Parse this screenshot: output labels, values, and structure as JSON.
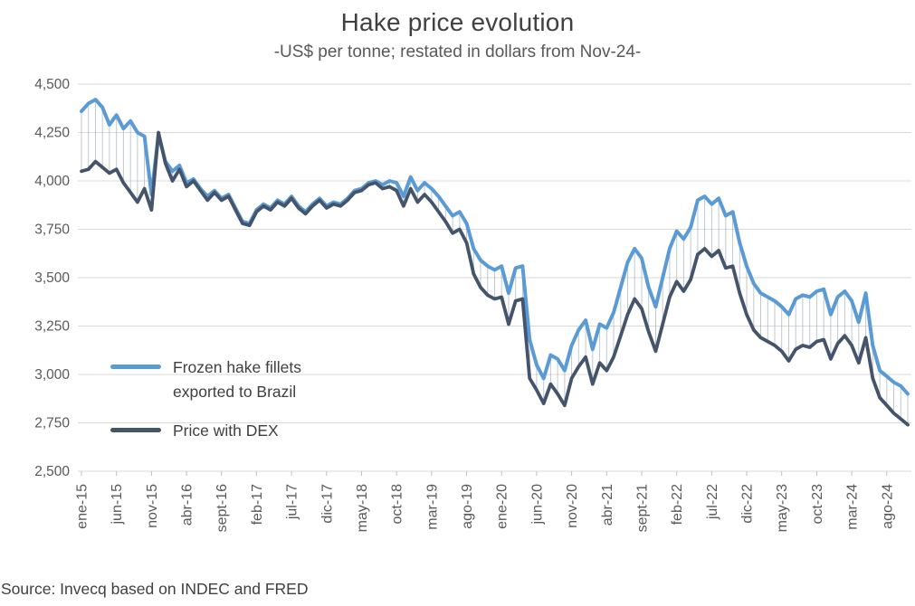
{
  "header": {
    "title": "Hake price evolution",
    "subtitle": "-US$ per tonne; restated in dollars from Nov-24-"
  },
  "legend": {
    "series1_label": "Frozen hake fillets exported to Brazil",
    "series2_label": "Price with DEX"
  },
  "footer": {
    "source": "Source: Invecq based on INDEC and FRED"
  },
  "colors": {
    "series1": "#5B9BD5",
    "series2": "#44546A",
    "grid": "#D9D9D9",
    "tick": "#BFBFBF",
    "hatch": "#8E9DB0",
    "axis_text": "#595959",
    "title_text": "#404040"
  },
  "chart_data": {
    "type": "line",
    "title": "Hake price evolution",
    "subtitle": "-US$ per tonne; restated in dollars from Nov-24-",
    "grid": true,
    "legend_position": "inside-left",
    "ylim": [
      2500,
      4500
    ],
    "ytick_step": 250,
    "y_tick_labels": [
      "2,500",
      "2,750",
      "3,000",
      "3,250",
      "3,500",
      "3,750",
      "4,000",
      "4,250",
      "4,500"
    ],
    "x_start": "ene-15",
    "x_end": "nov-24",
    "x_frequency": "monthly",
    "n_points": 119,
    "x_tick_interval": 5,
    "x_tick_labels": [
      "ene-15",
      "jun-15",
      "nov-15",
      "abr-16",
      "sept-16",
      "feb-17",
      "jul-17",
      "dic-17",
      "may-18",
      "oct-18",
      "mar-19",
      "ago-19",
      "ene-20",
      "jun-20",
      "nov-20",
      "abr-21",
      "sept-21",
      "feb-22",
      "jul-22",
      "dic-22",
      "may-23",
      "oct-23",
      "mar-24",
      "ago-24"
    ],
    "band_style": "thin vertical hatch lines connecting the two series at every month",
    "series": [
      {
        "name": "Frozen hake fillets exported to Brazil",
        "color": "#5B9BD5",
        "values": [
          4360,
          4400,
          4420,
          4380,
          4290,
          4340,
          4270,
          4310,
          4250,
          4230,
          3930,
          4240,
          4100,
          4050,
          4080,
          3990,
          4010,
          3960,
          3920,
          3950,
          3910,
          3930,
          3860,
          3790,
          3780,
          3850,
          3880,
          3860,
          3900,
          3880,
          3920,
          3870,
          3840,
          3880,
          3910,
          3870,
          3890,
          3880,
          3910,
          3950,
          3960,
          3990,
          4000,
          3980,
          4000,
          3990,
          3920,
          4020,
          3950,
          3990,
          3960,
          3920,
          3870,
          3820,
          3840,
          3780,
          3650,
          3590,
          3560,
          3540,
          3560,
          3420,
          3550,
          3560,
          3180,
          3050,
          2980,
          3100,
          3080,
          3020,
          3150,
          3230,
          3280,
          3130,
          3260,
          3240,
          3320,
          3450,
          3580,
          3650,
          3600,
          3450,
          3350,
          3500,
          3650,
          3740,
          3700,
          3760,
          3900,
          3920,
          3880,
          3910,
          3820,
          3840,
          3680,
          3560,
          3470,
          3420,
          3400,
          3380,
          3350,
          3310,
          3390,
          3410,
          3400,
          3430,
          3440,
          3310,
          3400,
          3430,
          3380,
          3270,
          3420,
          3150,
          3020,
          2990,
          2960,
          2940,
          2900
        ]
      },
      {
        "name": "Price with DEX",
        "color": "#44546A",
        "values": [
          4050,
          4060,
          4100,
          4070,
          4040,
          4060,
          3990,
          3940,
          3890,
          3960,
          3850,
          4250,
          4090,
          4000,
          4060,
          3970,
          4000,
          3950,
          3900,
          3940,
          3900,
          3920,
          3850,
          3780,
          3770,
          3840,
          3870,
          3850,
          3890,
          3870,
          3910,
          3860,
          3830,
          3870,
          3900,
          3860,
          3880,
          3870,
          3900,
          3940,
          3950,
          3980,
          3990,
          3960,
          3970,
          3950,
          3870,
          3960,
          3890,
          3930,
          3890,
          3840,
          3790,
          3730,
          3750,
          3680,
          3520,
          3450,
          3410,
          3390,
          3400,
          3260,
          3380,
          3390,
          2980,
          2920,
          2850,
          2950,
          2900,
          2840,
          2980,
          3040,
          3090,
          2950,
          3060,
          3020,
          3090,
          3200,
          3310,
          3390,
          3340,
          3220,
          3120,
          3260,
          3400,
          3480,
          3430,
          3490,
          3620,
          3650,
          3610,
          3640,
          3550,
          3560,
          3420,
          3310,
          3230,
          3190,
          3170,
          3150,
          3120,
          3070,
          3130,
          3150,
          3140,
          3170,
          3180,
          3080,
          3160,
          3200,
          3150,
          3060,
          3190,
          2980,
          2880,
          2840,
          2800,
          2770,
          2740
        ]
      }
    ]
  }
}
